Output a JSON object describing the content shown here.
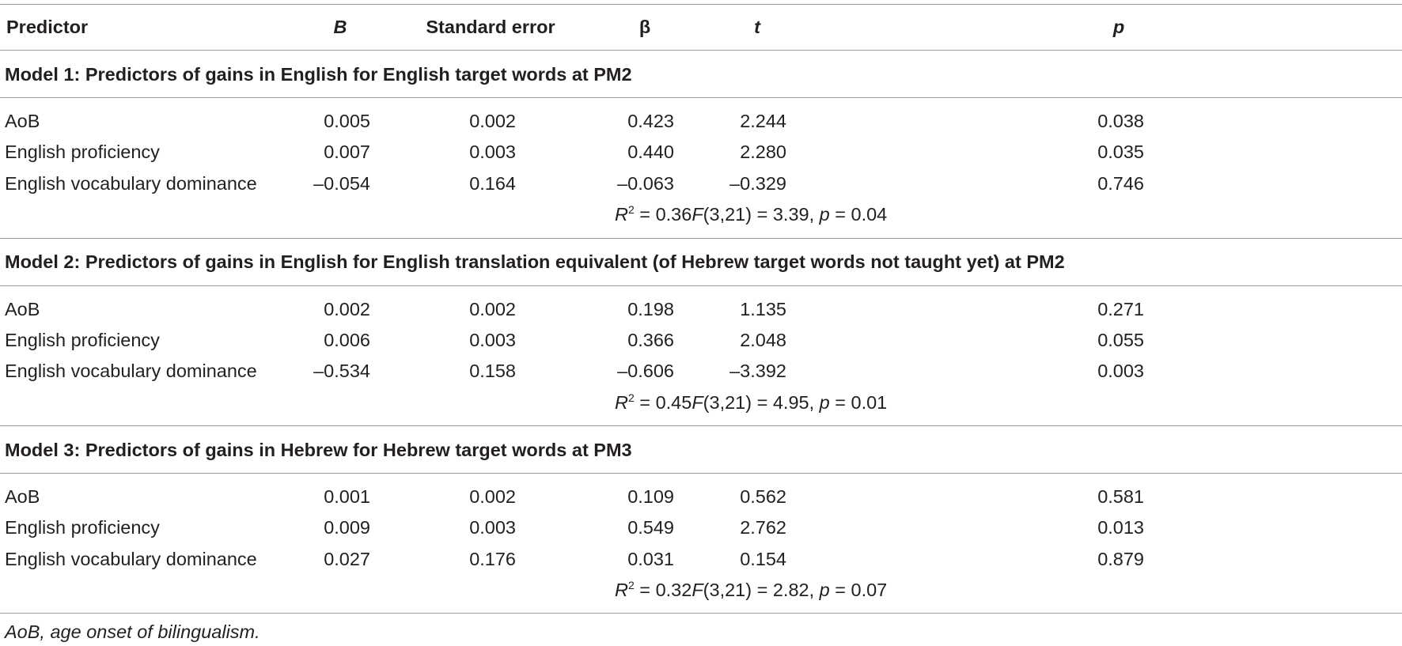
{
  "header": {
    "predictor": "Predictor",
    "b": "B",
    "se": "Standard error",
    "beta": "β",
    "t": "t",
    "p": "p"
  },
  "models": [
    {
      "title": "Model 1: Predictors of gains in English for English target words at PM2",
      "rows": [
        {
          "predictor": "AoB",
          "b": "0.005",
          "se": "0.002",
          "beta": "0.423",
          "t": "2.244",
          "p": "0.038"
        },
        {
          "predictor": "English proficiency",
          "b": "0.007",
          "se": "0.003",
          "beta": "0.440",
          "t": "2.280",
          "p": "0.035"
        },
        {
          "predictor": "English vocabulary dominance",
          "b": "–0.054",
          "se": "0.164",
          "beta": "–0.063",
          "t": "–0.329",
          "p": "0.746"
        }
      ],
      "r2_label": "R",
      "r2_sup": "2",
      "r2_value": " = 0.36",
      "f_label": "F",
      "f_value": "(3,21) = 3.39, ",
      "p_label": "p",
      "p_value": " = 0.04"
    },
    {
      "title": "Model 2: Predictors of gains in English for English translation equivalent (of Hebrew target words not taught yet) at PM2",
      "rows": [
        {
          "predictor": "AoB",
          "b": "0.002",
          "se": "0.002",
          "beta": "0.198",
          "t": "1.135",
          "p": "0.271"
        },
        {
          "predictor": "English proficiency",
          "b": "0.006",
          "se": "0.003",
          "beta": "0.366",
          "t": "2.048",
          "p": "0.055"
        },
        {
          "predictor": "English vocabulary dominance",
          "b": "–0.534",
          "se": "0.158",
          "beta": "–0.606",
          "t": "–3.392",
          "p": "0.003"
        }
      ],
      "r2_label": "R",
      "r2_sup": "2",
      "r2_value": " = 0.45",
      "f_label": "F",
      "f_value": "(3,21) = 4.95, ",
      "p_label": "p",
      "p_value": " = 0.01"
    },
    {
      "title": "Model 3: Predictors of gains in Hebrew for Hebrew target words at PM3",
      "rows": [
        {
          "predictor": "AoB",
          "b": "0.001",
          "se": "0.002",
          "beta": "0.109",
          "t": "0.562",
          "p": "0.581"
        },
        {
          "predictor": "English proficiency",
          "b": "0.009",
          "se": "0.003",
          "beta": "0.549",
          "t": "2.762",
          "p": "0.013"
        },
        {
          "predictor": "English vocabulary dominance",
          "b": "0.027",
          "se": "0.176",
          "beta": "0.031",
          "t": "0.154",
          "p": "0.879"
        }
      ],
      "r2_label": "R",
      "r2_sup": "2",
      "r2_value": " = 0.32",
      "f_label": "F",
      "f_value": "(3,21) = 2.82, ",
      "p_label": "p",
      "p_value": " = 0.07"
    }
  ],
  "footnote": "AoB, age onset of bilingualism."
}
